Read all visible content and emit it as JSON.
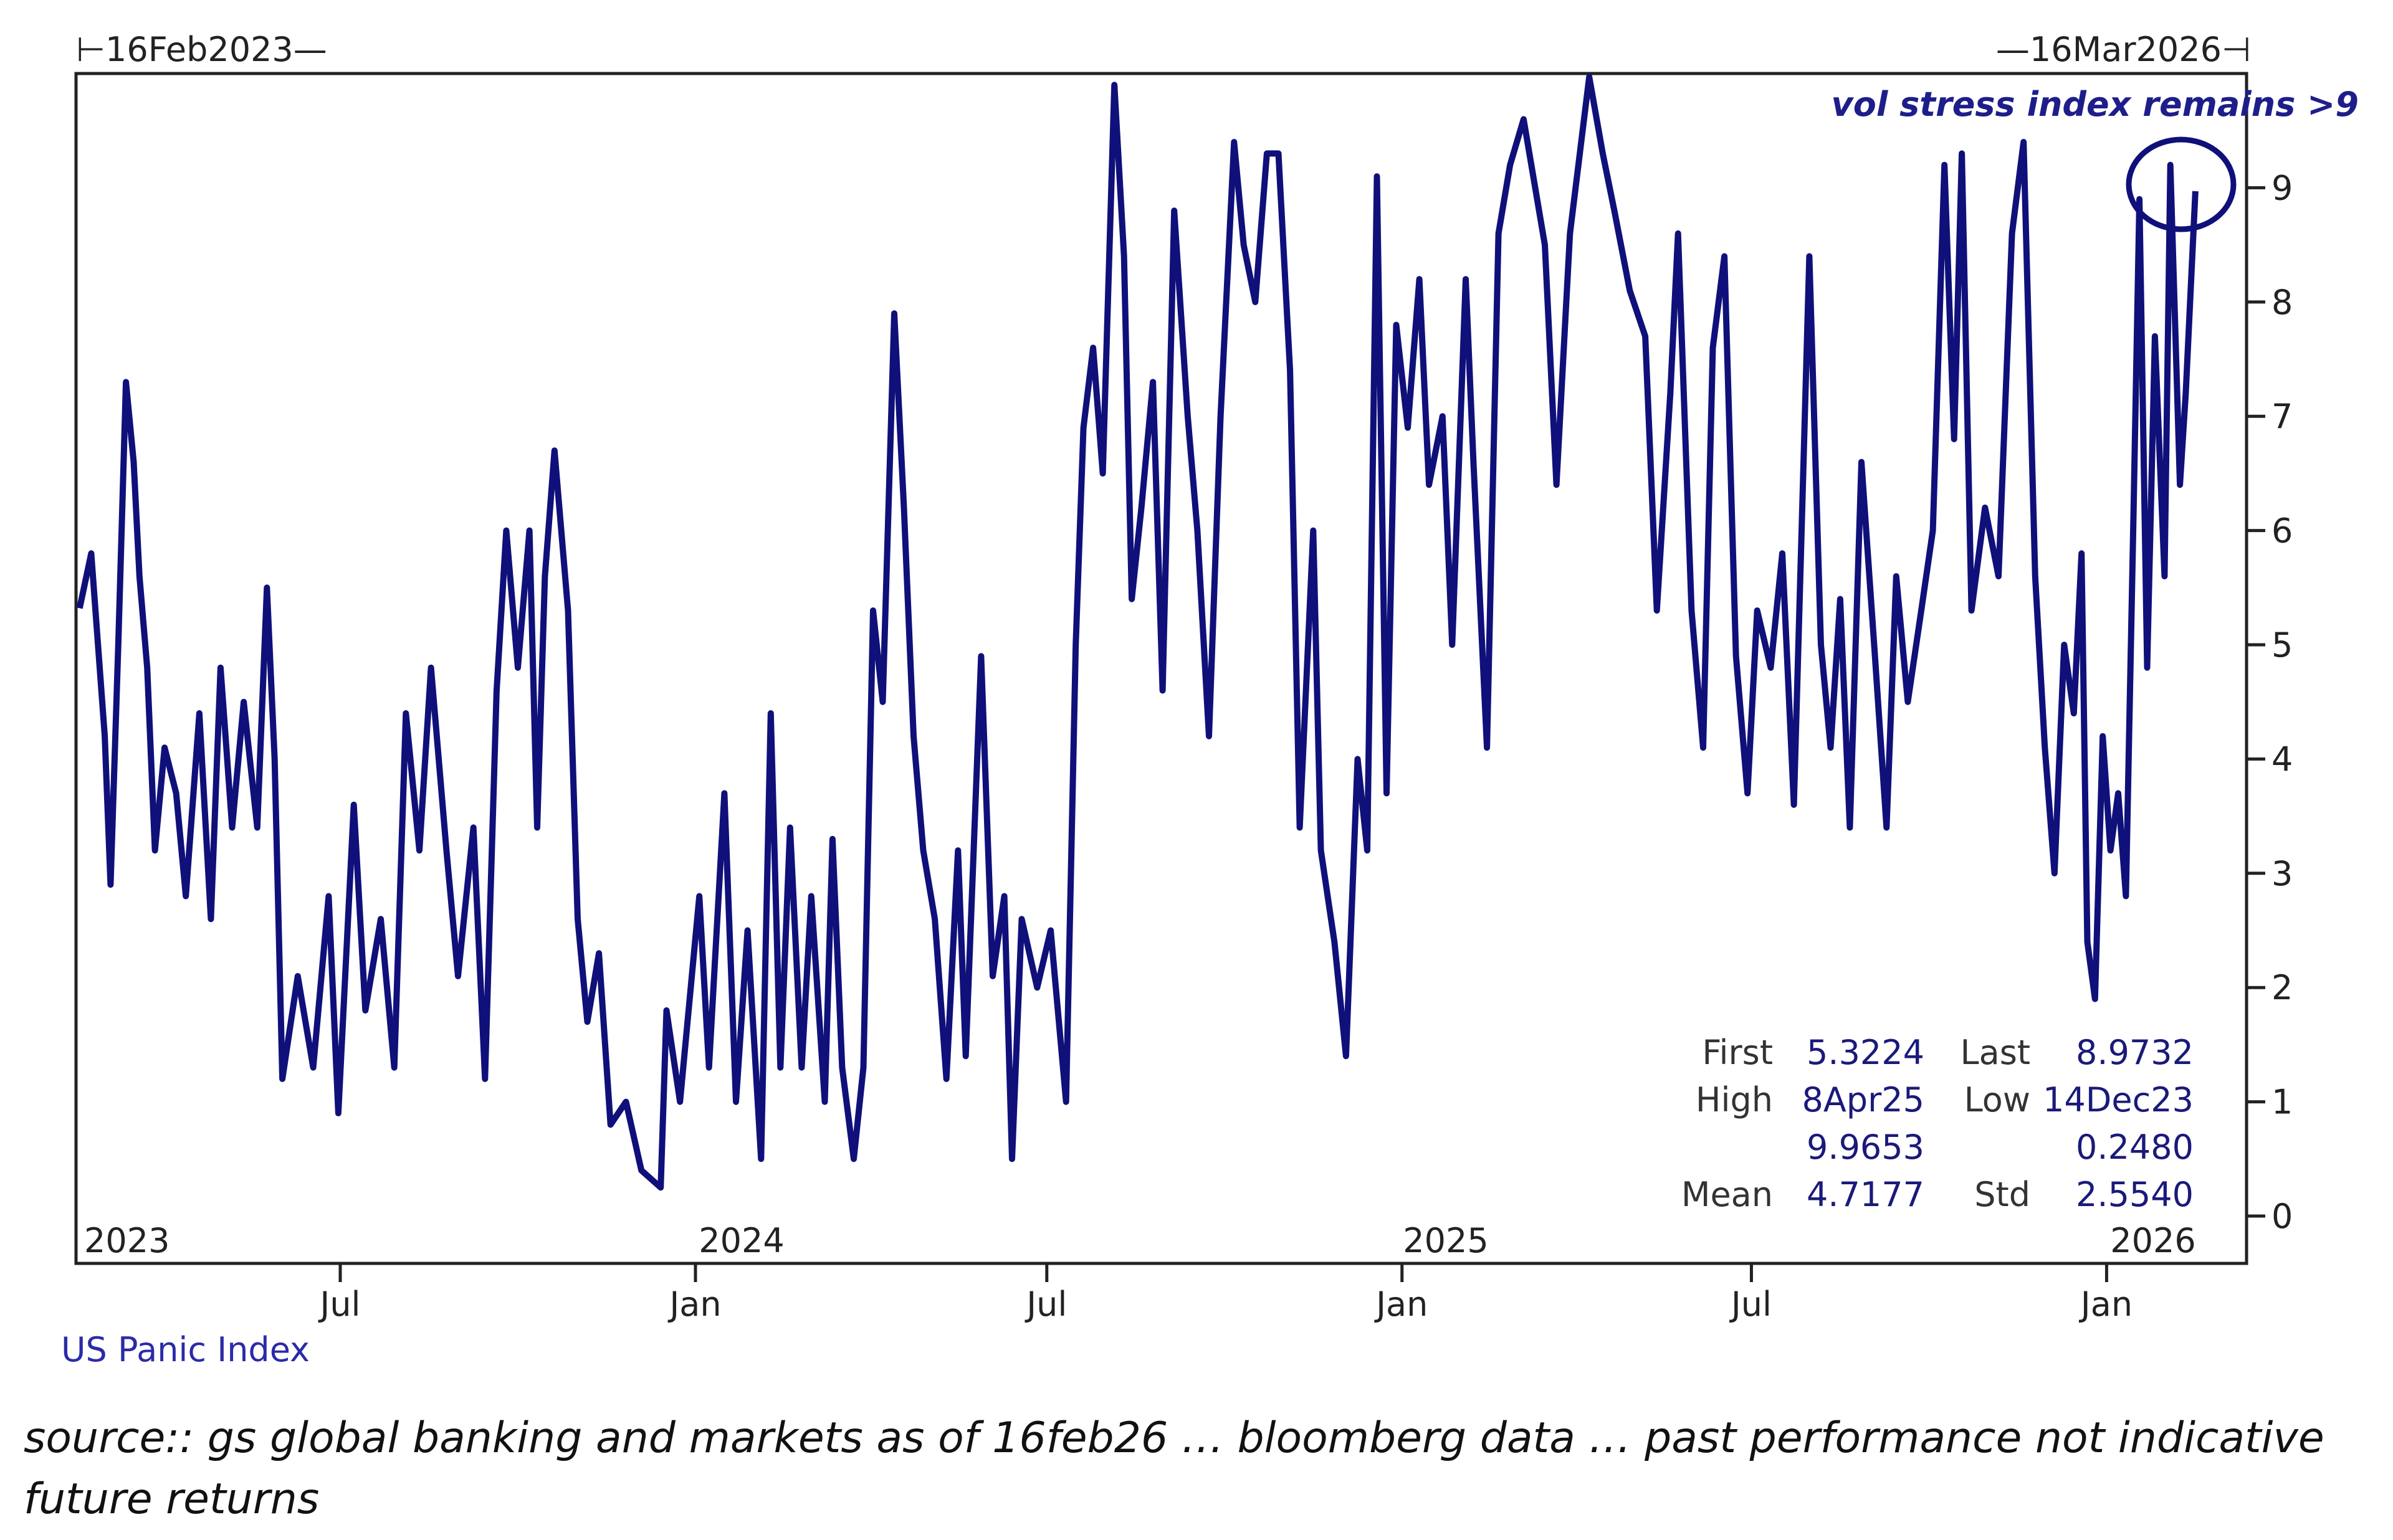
{
  "chart_data": {
    "type": "line",
    "range_start_label": "16Feb2023",
    "range_end_label": "16Mar2026",
    "annotation": "vol stress index remains >9",
    "series": [
      {
        "name": "US Panic Index",
        "color": "#10107a",
        "points": [
          [
            "2023-02-16",
            5.32
          ],
          [
            "2023-02-22",
            5.8
          ],
          [
            "2023-03-01",
            4.2
          ],
          [
            "2023-03-04",
            2.9
          ],
          [
            "2023-03-08",
            5.0
          ],
          [
            "2023-03-12",
            7.3
          ],
          [
            "2023-03-16",
            6.6
          ],
          [
            "2023-03-19",
            5.6
          ],
          [
            "2023-03-23",
            4.8
          ],
          [
            "2023-03-27",
            3.2
          ],
          [
            "2023-04-01",
            4.1
          ],
          [
            "2023-04-07",
            3.7
          ],
          [
            "2023-04-12",
            2.8
          ],
          [
            "2023-04-19",
            4.4
          ],
          [
            "2023-04-25",
            2.6
          ],
          [
            "2023-04-30",
            4.8
          ],
          [
            "2023-05-06",
            3.4
          ],
          [
            "2023-05-12",
            4.5
          ],
          [
            "2023-05-19",
            3.4
          ],
          [
            "2023-05-24",
            5.5
          ],
          [
            "2023-05-28",
            4.0
          ],
          [
            "2023-06-01",
            1.2
          ],
          [
            "2023-06-09",
            2.1
          ],
          [
            "2023-06-17",
            1.3
          ],
          [
            "2023-06-25",
            2.8
          ],
          [
            "2023-06-30",
            0.9
          ],
          [
            "2023-07-08",
            3.6
          ],
          [
            "2023-07-14",
            1.8
          ],
          [
            "2023-07-22",
            2.6
          ],
          [
            "2023-07-29",
            1.3
          ],
          [
            "2023-08-04",
            4.4
          ],
          [
            "2023-08-11",
            3.2
          ],
          [
            "2023-08-17",
            4.8
          ],
          [
            "2023-08-25",
            3.2
          ],
          [
            "2023-08-31",
            2.1
          ],
          [
            "2023-09-08",
            3.4
          ],
          [
            "2023-09-14",
            1.2
          ],
          [
            "2023-09-20",
            4.6
          ],
          [
            "2023-09-25",
            6.0
          ],
          [
            "2023-10-01",
            4.8
          ],
          [
            "2023-10-07",
            6.0
          ],
          [
            "2023-10-11",
            3.4
          ],
          [
            "2023-10-15",
            5.6
          ],
          [
            "2023-10-20",
            6.7
          ],
          [
            "2023-10-27",
            5.3
          ],
          [
            "2023-11-01",
            2.6
          ],
          [
            "2023-11-06",
            1.7
          ],
          [
            "2023-11-12",
            2.3
          ],
          [
            "2023-11-18",
            0.8
          ],
          [
            "2023-11-26",
            1.0
          ],
          [
            "2023-12-04",
            0.4
          ],
          [
            "2023-12-14",
            0.25
          ],
          [
            "2023-12-17",
            1.8
          ],
          [
            "2023-12-24",
            1.0
          ],
          [
            "2024-01-03",
            2.8
          ],
          [
            "2024-01-08",
            1.3
          ],
          [
            "2024-01-16",
            3.7
          ],
          [
            "2024-01-22",
            1.0
          ],
          [
            "2024-01-28",
            2.5
          ],
          [
            "2024-02-04",
            0.5
          ],
          [
            "2024-02-09",
            4.4
          ],
          [
            "2024-02-14",
            1.3
          ],
          [
            "2024-02-19",
            3.4
          ],
          [
            "2024-02-25",
            1.3
          ],
          [
            "2024-03-01",
            2.8
          ],
          [
            "2024-03-08",
            1.0
          ],
          [
            "2024-03-12",
            3.3
          ],
          [
            "2024-03-17",
            1.3
          ],
          [
            "2024-03-23",
            0.5
          ],
          [
            "2024-03-28",
            1.3
          ],
          [
            "2024-04-02",
            5.3
          ],
          [
            "2024-04-07",
            4.5
          ],
          [
            "2024-04-13",
            7.9
          ],
          [
            "2024-04-18",
            6.2
          ],
          [
            "2024-04-23",
            4.2
          ],
          [
            "2024-04-28",
            3.2
          ],
          [
            "2024-05-04",
            2.6
          ],
          [
            "2024-05-10",
            1.2
          ],
          [
            "2024-05-16",
            3.2
          ],
          [
            "2024-05-20",
            1.4
          ],
          [
            "2024-05-28",
            4.9
          ],
          [
            "2024-06-03",
            2.1
          ],
          [
            "2024-06-09",
            2.8
          ],
          [
            "2024-06-13",
            0.5
          ],
          [
            "2024-06-18",
            2.6
          ],
          [
            "2024-06-26",
            2.0
          ],
          [
            "2024-07-03",
            2.5
          ],
          [
            "2024-07-11",
            1.0
          ],
          [
            "2024-07-16",
            5.0
          ],
          [
            "2024-07-20",
            6.9
          ],
          [
            "2024-07-25",
            7.6
          ],
          [
            "2024-07-30",
            6.5
          ],
          [
            "2024-08-05",
            9.9
          ],
          [
            "2024-08-10",
            8.4
          ],
          [
            "2024-08-14",
            5.4
          ],
          [
            "2024-08-19",
            6.2
          ],
          [
            "2024-08-25",
            7.3
          ],
          [
            "2024-08-30",
            4.6
          ],
          [
            "2024-09-05",
            8.8
          ],
          [
            "2024-09-12",
            7.0
          ],
          [
            "2024-09-17",
            6.0
          ],
          [
            "2024-09-23",
            4.2
          ],
          [
            "2024-09-29",
            7.0
          ],
          [
            "2024-10-06",
            9.4
          ],
          [
            "2024-10-11",
            8.5
          ],
          [
            "2024-10-17",
            8.0
          ],
          [
            "2024-10-23",
            9.3
          ],
          [
            "2024-10-29",
            9.3
          ],
          [
            "2024-11-04",
            7.4
          ],
          [
            "2024-11-09",
            3.4
          ],
          [
            "2024-11-16",
            6.0
          ],
          [
            "2024-11-20",
            3.2
          ],
          [
            "2024-11-27",
            2.4
          ],
          [
            "2024-12-03",
            1.4
          ],
          [
            "2024-12-09",
            4.0
          ],
          [
            "2024-12-14",
            3.2
          ],
          [
            "2024-12-19",
            9.1
          ],
          [
            "2024-12-24",
            3.7
          ],
          [
            "2024-12-29",
            7.8
          ],
          [
            "2025-01-04",
            6.9
          ],
          [
            "2025-01-10",
            8.2
          ],
          [
            "2025-01-15",
            6.4
          ],
          [
            "2025-01-22",
            7.0
          ],
          [
            "2025-01-27",
            5.0
          ],
          [
            "2025-02-03",
            8.2
          ],
          [
            "2025-02-07",
            6.6
          ],
          [
            "2025-02-14",
            4.1
          ],
          [
            "2025-02-20",
            8.6
          ],
          [
            "2025-02-26",
            9.2
          ],
          [
            "2025-03-05",
            9.6
          ],
          [
            "2025-03-11",
            9.0
          ],
          [
            "2025-03-16",
            8.5
          ],
          [
            "2025-03-22",
            6.4
          ],
          [
            "2025-03-29",
            8.6
          ],
          [
            "2025-04-08",
            9.97
          ],
          [
            "2025-04-15",
            9.3
          ],
          [
            "2025-04-21",
            8.8
          ],
          [
            "2025-04-29",
            8.1
          ],
          [
            "2025-05-07",
            7.7
          ],
          [
            "2025-05-13",
            5.3
          ],
          [
            "2025-05-20",
            7.2
          ],
          [
            "2025-05-24",
            8.6
          ],
          [
            "2025-05-31",
            5.3
          ],
          [
            "2025-06-06",
            4.1
          ],
          [
            "2025-06-11",
            7.6
          ],
          [
            "2025-06-17",
            8.4
          ],
          [
            "2025-06-23",
            4.9
          ],
          [
            "2025-06-29",
            3.7
          ],
          [
            "2025-07-04",
            5.3
          ],
          [
            "2025-07-11",
            4.8
          ],
          [
            "2025-07-17",
            5.8
          ],
          [
            "2025-07-23",
            3.6
          ],
          [
            "2025-07-31",
            8.4
          ],
          [
            "2025-08-06",
            5.0
          ],
          [
            "2025-08-11",
            4.1
          ],
          [
            "2025-08-16",
            5.4
          ],
          [
            "2025-08-21",
            3.4
          ],
          [
            "2025-08-27",
            6.6
          ],
          [
            "2025-09-03",
            4.9
          ],
          [
            "2025-09-09",
            3.4
          ],
          [
            "2025-09-14",
            5.6
          ],
          [
            "2025-09-20",
            4.5
          ],
          [
            "2025-09-27",
            5.3
          ],
          [
            "2025-10-03",
            6.0
          ],
          [
            "2025-10-09",
            9.2
          ],
          [
            "2025-10-14",
            6.8
          ],
          [
            "2025-10-18",
            9.3
          ],
          [
            "2025-10-23",
            5.3
          ],
          [
            "2025-10-30",
            6.2
          ],
          [
            "2025-11-06",
            5.6
          ],
          [
            "2025-11-13",
            8.6
          ],
          [
            "2025-11-19",
            9.4
          ],
          [
            "2025-11-25",
            5.6
          ],
          [
            "2025-11-30",
            4.1
          ],
          [
            "2025-12-05",
            3.0
          ],
          [
            "2025-12-10",
            5.0
          ],
          [
            "2025-12-15",
            4.4
          ],
          [
            "2025-12-19",
            5.8
          ],
          [
            "2025-12-22",
            2.4
          ],
          [
            "2025-12-26",
            1.9
          ],
          [
            "2025-12-30",
            4.2
          ],
          [
            "2026-01-03",
            3.2
          ],
          [
            "2026-01-07",
            3.7
          ],
          [
            "2026-01-11",
            2.8
          ],
          [
            "2026-01-15",
            6.2
          ],
          [
            "2026-01-18",
            8.9
          ],
          [
            "2026-01-22",
            4.8
          ],
          [
            "2026-01-26",
            7.7
          ],
          [
            "2026-01-31",
            5.6
          ],
          [
            "2026-02-03",
            9.2
          ],
          [
            "2026-02-08",
            6.4
          ],
          [
            "2026-02-11",
            7.2
          ],
          [
            "2026-02-16",
            8.97
          ]
        ]
      }
    ],
    "x_range": [
      "2023-02-16",
      "2026-03-16"
    ],
    "x_ticks": [
      {
        "date": "2023-07-01",
        "label": "Jul"
      },
      {
        "date": "2024-01-01",
        "label": "Jan"
      },
      {
        "date": "2024-07-01",
        "label": "Jul"
      },
      {
        "date": "2025-01-01",
        "label": "Jan"
      },
      {
        "date": "2025-07-01",
        "label": "Jul"
      },
      {
        "date": "2026-01-01",
        "label": "Jan"
      }
    ],
    "year_labels": [
      "2023",
      "2024",
      "2025",
      "2026"
    ],
    "y_axis": {
      "position": "right",
      "ylim": [
        0,
        10
      ],
      "ticks": [
        "0",
        "1",
        "2",
        "3",
        "4",
        "5",
        "6",
        "7",
        "8",
        "9"
      ]
    },
    "grid": false,
    "legend": "bottom-left",
    "stats": {
      "first_label": "First",
      "first": "5.3224",
      "last_label": "Last",
      "last": "8.9732",
      "high_label": "High",
      "high_date": "8Apr25",
      "high": "9.9653",
      "low_label": "Low",
      "low_date": "14Dec23",
      "low": "0.2480",
      "mean_label": "Mean",
      "mean": "4.7177",
      "std_label": "Std",
      "std": "2.5540"
    }
  },
  "legend_label": "US Panic Index",
  "source_note": "source:: gs global banking and markets as of 16feb26 … bloomberg data … past performance not indicative future returns"
}
